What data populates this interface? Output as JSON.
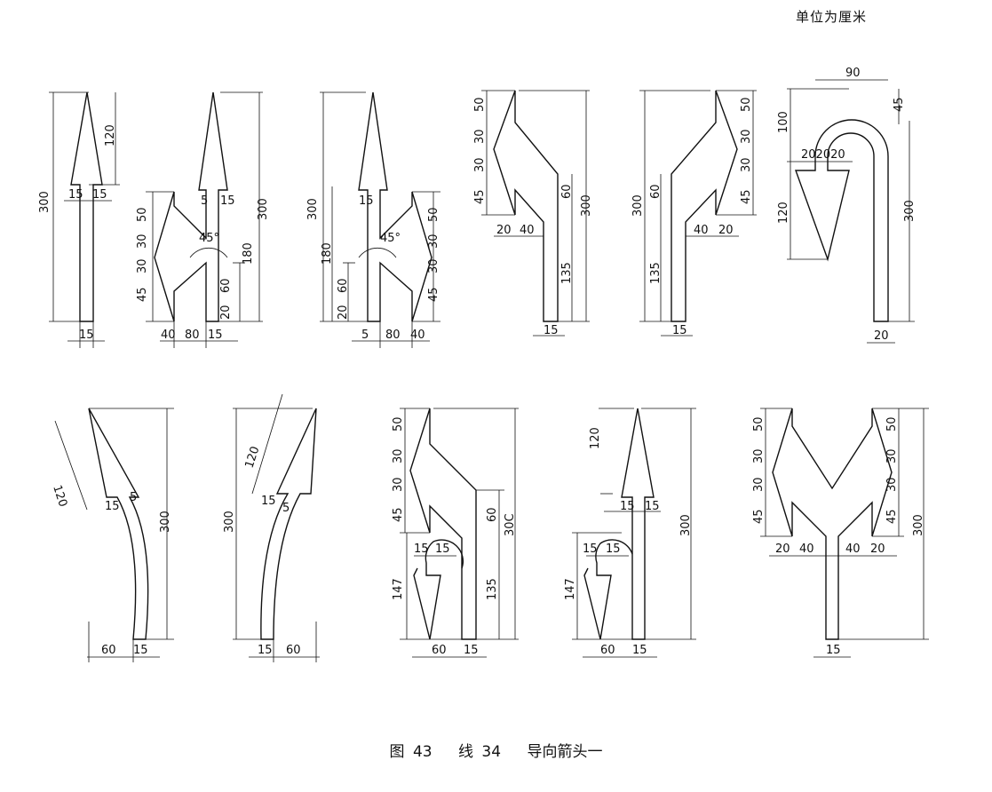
{
  "unit_note": "单位为厘米",
  "caption": {
    "figure": "图 43",
    "line": "线 34",
    "title": "导向箭头一"
  },
  "dims": {
    "d15": "15",
    "d20": "20",
    "d30": "30",
    "d40": "40",
    "d45": "45",
    "d50": "50",
    "d60": "60",
    "d80": "80",
    "d90": "90",
    "d100": "100",
    "d120": "120",
    "d135": "135",
    "d147": "147",
    "d180": "180",
    "d300": "300",
    "d300c": "30C",
    "d5": "5",
    "a45": "45°",
    "d202020": "202020"
  }
}
